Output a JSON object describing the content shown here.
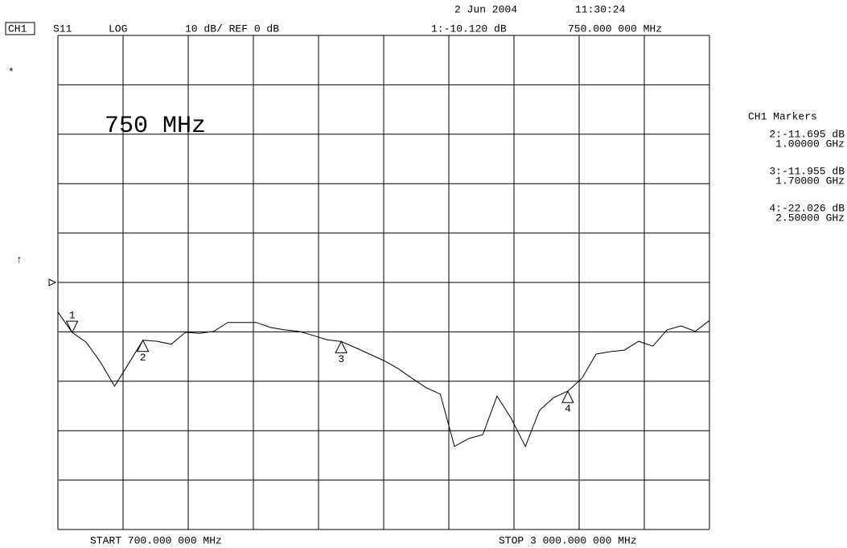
{
  "chart_data": {
    "type": "line",
    "channel": "CH1",
    "parameter": "S11",
    "format": "LOG",
    "scale_text": "10 dB/ REF 0 dB",
    "date": "2 Jun 2004",
    "time": "11:30:24",
    "active_readout": "1:-10.120 dB",
    "active_freq": "750.000 000 MHz",
    "star": "*",
    "arrow": "↑",
    "big_label": "750 MHz",
    "marker_panel_title": "CH1 Markers",
    "start_text": "START 700.000 000 MHz",
    "stop_text": "STOP 3 000.000 000 MHz",
    "color": "#000000",
    "ref_level": 0,
    "xlim": [
      700,
      3000
    ],
    "ylim": [
      -50,
      50
    ],
    "x": [
      700,
      750,
      800,
      850,
      900,
      950,
      1000,
      1050,
      1100,
      1150,
      1200,
      1250,
      1300,
      1350,
      1400,
      1450,
      1500,
      1550,
      1600,
      1650,
      1700,
      1750,
      1800,
      1850,
      1900,
      1950,
      2000,
      2050,
      2100,
      2150,
      2200,
      2250,
      2300,
      2350,
      2400,
      2450,
      2500,
      2550,
      2600,
      2650,
      2700,
      2750,
      2800,
      2850,
      2900,
      2950,
      3000
    ],
    "values": [
      -6.0,
      -10.1,
      -12.1,
      -16.1,
      -21.0,
      -16.4,
      -11.7,
      -11.9,
      -12.5,
      -10.1,
      -10.3,
      -9.9,
      -8.1,
      -8.1,
      -8.1,
      -9.1,
      -9.6,
      -9.9,
      -10.7,
      -11.6,
      -11.96,
      -13.2,
      -14.5,
      -15.8,
      -17.4,
      -19.4,
      -21.3,
      -22.6,
      -33.2,
      -31.6,
      -30.8,
      -23.0,
      -27.5,
      -33.2,
      -25.9,
      -23.3,
      -22.0,
      -19.4,
      -14.5,
      -14.0,
      -13.7,
      -11.9,
      -12.9,
      -9.6,
      -8.8,
      -9.9,
      -7.7
    ],
    "markers": [
      {
        "label": "1",
        "x": 750,
        "value": -10.12
      },
      {
        "label": "2",
        "x": 1000,
        "value": -11.695,
        "readout": "2:-11.695 dB",
        "freq": "1.00000 GHz"
      },
      {
        "label": "3",
        "x": 1700,
        "value": -11.955,
        "readout": "3:-11.955 dB",
        "freq": "1.70000 GHz"
      },
      {
        "label": "4",
        "x": 2500,
        "value": -22.026,
        "readout": "4:-22.026 dB",
        "freq": "2.50000 GHz"
      }
    ]
  }
}
